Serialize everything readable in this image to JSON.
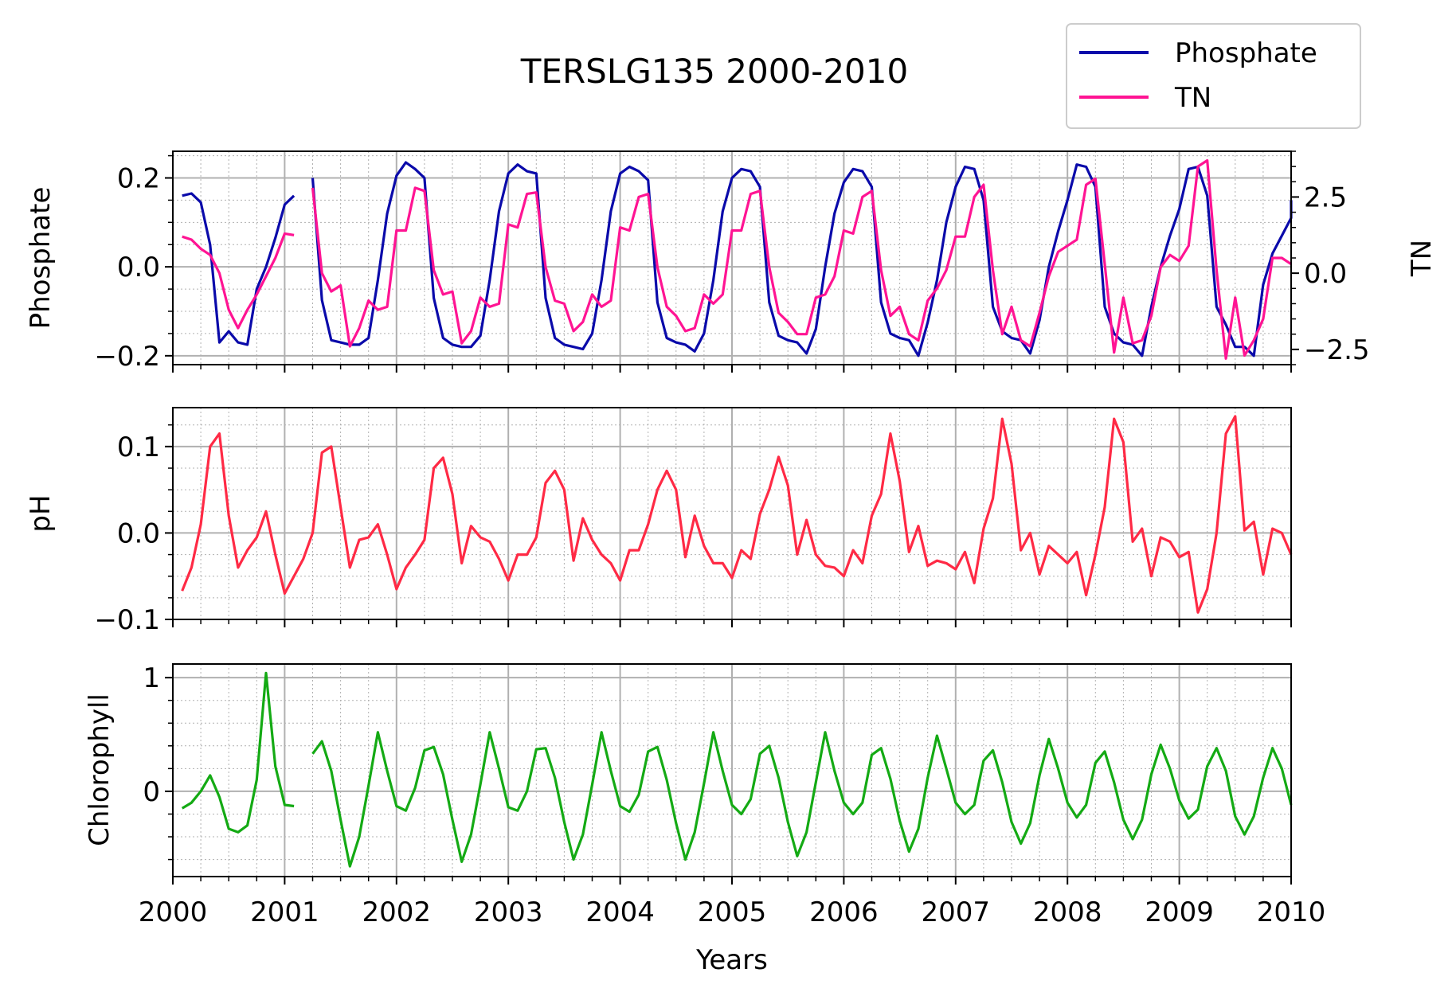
{
  "chart_data": {
    "title": "TERSLG135 2000-2010",
    "xlabel": "Years",
    "x_range": [
      2000,
      2010
    ],
    "x_ticks": [
      "2000",
      "2001",
      "2002",
      "2003",
      "2004",
      "2005",
      "2006",
      "2007",
      "2008",
      "2009",
      "2010"
    ],
    "grid": true,
    "legend": {
      "placement": "top-right",
      "entries": [
        {
          "label": "Phosphate",
          "color": "#0a0aaa"
        },
        {
          "label": "TN",
          "color": "#ff1493"
        }
      ]
    },
    "panels": [
      {
        "type": "line",
        "ylabel": "Phosphate",
        "ylim": [
          -0.22,
          0.26
        ],
        "yticks": [
          {
            "v": 0.2,
            "label": "0.2"
          },
          {
            "v": 0.0,
            "label": "0.0"
          },
          {
            "v": -0.2,
            "label": "−0.2"
          }
        ],
        "right_axis": {
          "ylabel": "TN",
          "ylim": [
            -3.0,
            4.0
          ],
          "yticks": [
            {
              "v": 2.5,
              "label": "2.5"
            },
            {
              "v": 0.0,
              "label": "0.0"
            },
            {
              "v": -2.5,
              "label": "−2.5"
            }
          ]
        },
        "series": [
          {
            "name": "Phosphate",
            "axis": "left",
            "color": "#0a0aaa",
            "segments": [
              {
                "start": 2000.083,
                "values": [
                  0.16,
                  0.165,
                  0.145,
                  0.05,
                  -0.17,
                  -0.145,
                  -0.17,
                  -0.175,
                  -0.05,
                  0.0,
                  0.065,
                  0.14,
                  0.16
                ]
              },
              {
                "start": 2001.25,
                "values": [
                  0.2,
                  -0.075,
                  -0.165,
                  -0.17,
                  -0.175,
                  -0.175,
                  -0.16,
                  -0.03,
                  0.12,
                  0.205,
                  0.235,
                  0.22,
                  0.2,
                  -0.07,
                  -0.16,
                  -0.175,
                  -0.18,
                  -0.18,
                  -0.155,
                  -0.03,
                  0.125,
                  0.21,
                  0.23,
                  0.215,
                  0.21,
                  -0.07,
                  -0.16,
                  -0.175,
                  -0.18,
                  -0.185,
                  -0.15,
                  -0.03,
                  0.125,
                  0.21,
                  0.225,
                  0.215,
                  0.195,
                  -0.08,
                  -0.16,
                  -0.17,
                  -0.175,
                  -0.19,
                  -0.15,
                  -0.03,
                  0.125,
                  0.2,
                  0.22,
                  0.215,
                  0.18,
                  -0.08,
                  -0.155,
                  -0.165,
                  -0.17,
                  -0.195,
                  -0.14,
                  0.0,
                  0.12,
                  0.19,
                  0.22,
                  0.215,
                  0.18,
                  -0.08,
                  -0.15,
                  -0.16,
                  -0.165,
                  -0.2,
                  -0.125,
                  -0.03,
                  0.1,
                  0.18,
                  0.225,
                  0.22,
                  0.15,
                  -0.09,
                  -0.145,
                  -0.16,
                  -0.165,
                  -0.195,
                  -0.12,
                  0.0,
                  0.08,
                  0.15,
                  0.23,
                  0.225,
                  0.18,
                  -0.09,
                  -0.15,
                  -0.17,
                  -0.175,
                  -0.2,
                  -0.09,
                  0.0,
                  0.07,
                  0.13,
                  0.22,
                  0.225,
                  0.16,
                  -0.09,
                  -0.13,
                  -0.18,
                  -0.18,
                  -0.2,
                  -0.04,
                  0.03,
                  0.07,
                  0.11,
                  0.15
                ]
              }
            ]
          },
          {
            "name": "TN",
            "axis": "right",
            "color": "#ff1493",
            "segments": [
              {
                "start": 2000.083,
                "values": [
                  1.2,
                  1.1,
                  0.8,
                  0.6,
                  0.0,
                  -1.2,
                  -1.8,
                  -1.2,
                  -0.7,
                  -0.1,
                  0.5,
                  1.3,
                  1.25
                ]
              },
              {
                "start": 2001.25,
                "values": [
                  2.8,
                  0.0,
                  -0.6,
                  -0.4,
                  -2.4,
                  -1.8,
                  -0.9,
                  -1.2,
                  -1.1,
                  1.4,
                  1.4,
                  2.8,
                  2.7,
                  0.1,
                  -0.7,
                  -0.6,
                  -2.3,
                  -1.9,
                  -0.8,
                  -1.1,
                  -1.0,
                  1.6,
                  1.5,
                  2.6,
                  2.65,
                  0.2,
                  -0.9,
                  -1.0,
                  -1.9,
                  -1.6,
                  -0.7,
                  -1.1,
                  -0.9,
                  1.5,
                  1.4,
                  2.5,
                  2.6,
                  0.2,
                  -1.1,
                  -1.4,
                  -1.9,
                  -1.8,
                  -0.7,
                  -1.0,
                  -0.7,
                  1.4,
                  1.4,
                  2.6,
                  2.7,
                  0.2,
                  -1.3,
                  -1.6,
                  -2.0,
                  -2.0,
                  -0.8,
                  -0.7,
                  -0.1,
                  1.4,
                  1.3,
                  2.5,
                  2.7,
                  0.1,
                  -1.4,
                  -1.1,
                  -2.0,
                  -2.2,
                  -0.9,
                  -0.5,
                  0.1,
                  1.2,
                  1.2,
                  2.5,
                  2.9,
                  0.1,
                  -2.0,
                  -1.1,
                  -2.2,
                  -2.4,
                  -1.3,
                  -0.1,
                  0.7,
                  0.9,
                  1.1,
                  2.9,
                  3.1,
                  0.3,
                  -2.6,
                  -0.8,
                  -2.3,
                  -2.2,
                  -1.4,
                  0.2,
                  0.6,
                  0.4,
                  0.9,
                  3.5,
                  3.7,
                  0.1,
                  -2.8,
                  -0.8,
                  -2.7,
                  -2.2,
                  -1.5,
                  0.5,
                  0.5,
                  0.3
                ]
              }
            ]
          }
        ]
      },
      {
        "type": "line",
        "ylabel": "pH",
        "ylim": [
          -0.1,
          0.145
        ],
        "yticks": [
          {
            "v": 0.1,
            "label": "0.1"
          },
          {
            "v": 0.0,
            "label": "0.0"
          },
          {
            "v": -0.1,
            "label": "−0.1"
          }
        ],
        "series": [
          {
            "name": "pH",
            "axis": "left",
            "color": "#ff2a45",
            "segments": [
              {
                "start": 2000.083,
                "values": [
                  -0.067,
                  -0.04,
                  0.01,
                  0.1,
                  0.115,
                  0.02,
                  -0.04,
                  -0.02,
                  -0.005,
                  0.025,
                  -0.025,
                  -0.07,
                  -0.05,
                  -0.03,
                  0.0,
                  0.093,
                  0.1,
                  0.03,
                  -0.04,
                  -0.008,
                  -0.005,
                  0.01,
                  -0.025,
                  -0.065,
                  -0.04,
                  -0.025,
                  -0.008,
                  0.075,
                  0.087,
                  0.045,
                  -0.035,
                  0.008,
                  -0.005,
                  -0.01,
                  -0.03,
                  -0.055,
                  -0.025,
                  -0.025,
                  -0.005,
                  0.058,
                  0.072,
                  0.05,
                  -0.032,
                  0.017,
                  -0.008,
                  -0.025,
                  -0.035,
                  -0.055,
                  -0.02,
                  -0.02,
                  0.01,
                  0.05,
                  0.072,
                  0.05,
                  -0.028,
                  0.02,
                  -0.015,
                  -0.035,
                  -0.035,
                  -0.052,
                  -0.02,
                  -0.03,
                  0.022,
                  0.05,
                  0.088,
                  0.055,
                  -0.025,
                  0.015,
                  -0.025,
                  -0.038,
                  -0.04,
                  -0.05,
                  -0.02,
                  -0.035,
                  0.02,
                  0.045,
                  0.115,
                  0.06,
                  -0.022,
                  0.008,
                  -0.038,
                  -0.032,
                  -0.035,
                  -0.042,
                  -0.022,
                  -0.058,
                  0.005,
                  0.04,
                  0.132,
                  0.08,
                  -0.02,
                  0.0,
                  -0.048,
                  -0.015,
                  -0.025,
                  -0.035,
                  -0.022,
                  -0.072,
                  -0.025,
                  0.03,
                  0.132,
                  0.105,
                  -0.01,
                  0.005,
                  -0.05,
                  -0.005,
                  -0.01,
                  -0.028,
                  -0.022,
                  -0.092,
                  -0.065,
                  0.0,
                  0.115,
                  0.135,
                  0.003,
                  0.013,
                  -0.048,
                  0.005,
                  0.0,
                  -0.025
                ]
              }
            ]
          }
        ]
      },
      {
        "type": "line",
        "ylabel": "Chlorophyll",
        "ylim": [
          -0.75,
          1.12
        ],
        "yticks": [
          {
            "v": 1,
            "label": "1"
          },
          {
            "v": 0,
            "label": "0"
          }
        ],
        "series": [
          {
            "name": "Chlorophyll",
            "axis": "left",
            "color": "#14aa14",
            "segments": [
              {
                "start": 2000.083,
                "values": [
                  -0.15,
                  -0.1,
                  0.0,
                  0.14,
                  -0.05,
                  -0.33,
                  -0.36,
                  -0.3,
                  0.1,
                  1.04,
                  0.22,
                  -0.12,
                  -0.13
                ]
              },
              {
                "start": 2001.25,
                "values": [
                  0.33,
                  0.44,
                  0.18,
                  -0.25,
                  -0.66,
                  -0.4,
                  0.05,
                  0.52,
                  0.18,
                  -0.13,
                  -0.17,
                  0.03,
                  0.36,
                  0.39,
                  0.15,
                  -0.25,
                  -0.62,
                  -0.38,
                  0.06,
                  0.52,
                  0.2,
                  -0.14,
                  -0.17,
                  0.0,
                  0.37,
                  0.38,
                  0.12,
                  -0.27,
                  -0.6,
                  -0.38,
                  0.06,
                  0.52,
                  0.18,
                  -0.13,
                  -0.18,
                  -0.03,
                  0.35,
                  0.39,
                  0.1,
                  -0.28,
                  -0.6,
                  -0.36,
                  0.07,
                  0.52,
                  0.18,
                  -0.12,
                  -0.2,
                  -0.07,
                  0.33,
                  0.4,
                  0.12,
                  -0.27,
                  -0.57,
                  -0.36,
                  0.08,
                  0.52,
                  0.18,
                  -0.1,
                  -0.2,
                  -0.1,
                  0.32,
                  0.38,
                  0.11,
                  -0.26,
                  -0.53,
                  -0.33,
                  0.12,
                  0.49,
                  0.2,
                  -0.1,
                  -0.2,
                  -0.12,
                  0.27,
                  0.36,
                  0.08,
                  -0.27,
                  -0.46,
                  -0.28,
                  0.14,
                  0.46,
                  0.2,
                  -0.1,
                  -0.23,
                  -0.12,
                  0.25,
                  0.35,
                  0.08,
                  -0.25,
                  -0.42,
                  -0.25,
                  0.15,
                  0.41,
                  0.2,
                  -0.08,
                  -0.24,
                  -0.16,
                  0.22,
                  0.38,
                  0.18,
                  -0.22,
                  -0.38,
                  -0.22,
                  0.12,
                  0.38,
                  0.2,
                  -0.12
                ]
              }
            ]
          }
        ]
      }
    ]
  }
}
